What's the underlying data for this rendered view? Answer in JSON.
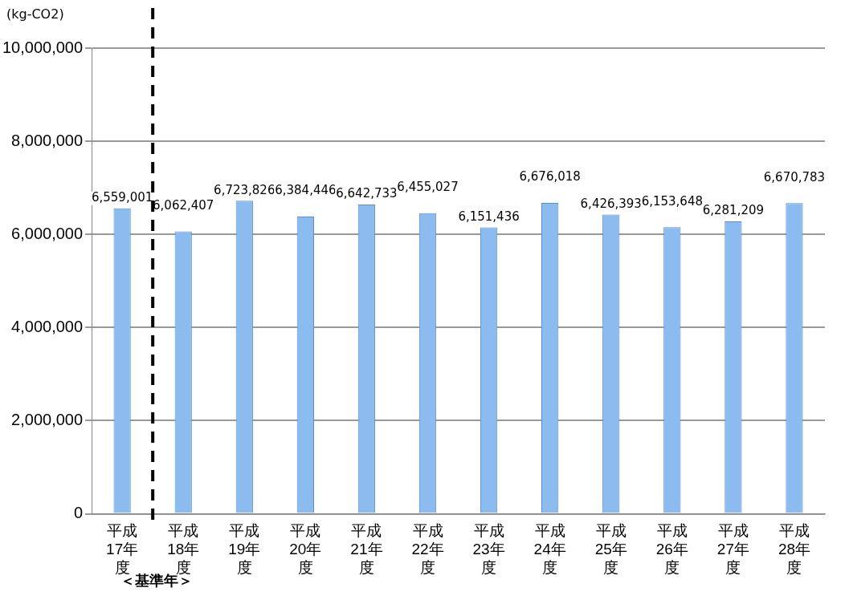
{
  "chart_data": {
    "type": "bar",
    "ylabel": "(kg-CO2)",
    "categories": [
      "平成17年度",
      "平成18年度",
      "平成19年度",
      "平成20年度",
      "平成21年度",
      "平成22年度",
      "平成23年度",
      "平成24年度",
      "平成25年度",
      "平成26年度",
      "平成27年度",
      "平成28年度"
    ],
    "values": [
      6559001,
      6062407,
      6723826,
      6384446,
      6642733,
      6455027,
      6151436,
      6676018,
      6426393,
      6153648,
      6281209,
      6670783
    ],
    "color": "#8cbcef",
    "ylim": [
      0,
      10000000
    ],
    "yticks": [
      {
        "value": 0,
        "label": "0"
      },
      {
        "value": 2000000,
        "label": "2,000,000"
      },
      {
        "value": 4000000,
        "label": "4,000,000"
      },
      {
        "value": 6000000,
        "label": "6,000,000"
      },
      {
        "value": 8000000,
        "label": "8,000,000"
      },
      {
        "value": 10000000,
        "label": "10,000,000"
      }
    ],
    "value_labels": [
      "6,559,001",
      "6,062,407",
      "6,723,826",
      "6,384,446",
      "6,642,733",
      "6,455,027",
      "6,151,436",
      "6,676,018",
      "6,426,393",
      "6,153,648",
      "6,281,209",
      "6,670,783"
    ],
    "grid": "y",
    "legend": false,
    "data_labels": true,
    "ref_lines": [
      {
        "axis": "x",
        "value": "平成17年度",
        "color": "#000000",
        "line_style": "dashed"
      }
    ],
    "annotations": [
      "＜基準年＞"
    ]
  }
}
